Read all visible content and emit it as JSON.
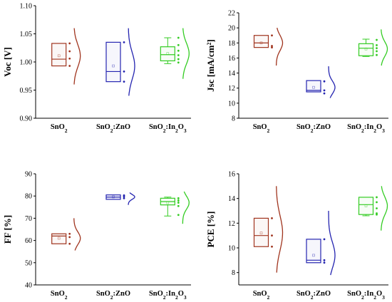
{
  "chart_data": [
    {
      "type": "box",
      "ylabel_main": "Voc",
      "ylabel_unit": "[V]",
      "ylim": [
        0.9,
        1.1
      ],
      "yticks": [
        0.9,
        0.95,
        1.0,
        1.05,
        1.1
      ],
      "ytick_labels": [
        "0.90",
        "0.95",
        "1.00",
        "1.05",
        "1.10"
      ],
      "categories": [
        {
          "base": "SnO",
          "sub": "2",
          "mid": "",
          "sub2": ""
        },
        {
          "base": "SnO",
          "sub": "2",
          "mid": ":ZnO",
          "sub2": ""
        },
        {
          "base": "SnO",
          "sub": "2",
          "mid": ":In",
          "sub2": "2",
          "tail": "O",
          "sub3": "3"
        }
      ],
      "colors": [
        "#a0341e",
        "#2424b0",
        "#33cc22"
      ],
      "boxes": [
        {
          "q1": 0.993,
          "median": 1.005,
          "q3": 1.033,
          "whisker_low": 0.993,
          "whisker_high": 1.033,
          "mean": 1.011,
          "points": [
            1.033,
            1.019,
            1.006,
            0.993
          ],
          "curve": [
            0.96,
            1.06
          ]
        },
        {
          "q1": 0.965,
          "median": 0.983,
          "q3": 1.035,
          "whisker_low": 0.965,
          "whisker_high": 1.035,
          "mean": 0.993,
          "points": [
            1.035,
            0.983,
            0.965
          ],
          "curve": [
            0.94,
            1.06
          ]
        },
        {
          "q1": 1.002,
          "median": 1.013,
          "q3": 1.027,
          "whisker_low": 0.997,
          "whisker_high": 1.043,
          "mean": 1.015,
          "points": [
            1.043,
            1.03,
            1.02,
            1.012,
            1.005,
            0.999
          ],
          "curve": [
            0.97,
            1.06
          ]
        }
      ]
    },
    {
      "type": "box",
      "ylabel_main": "Jsc",
      "ylabel_unit": "[mA/cm",
      "ylabel_sup": "2",
      "ylabel_end": "]",
      "ylim": [
        8,
        22
      ],
      "yticks": [
        8,
        10,
        12,
        14,
        16,
        18,
        20,
        22
      ],
      "ytick_labels": [
        "8",
        "10",
        "12",
        "14",
        "16",
        "18",
        "20",
        "22"
      ],
      "categories": [
        {
          "base": "SnO",
          "sub": "2",
          "mid": "",
          "sub2": ""
        },
        {
          "base": "SnO",
          "sub": "2",
          "mid": ":ZnO",
          "sub2": ""
        },
        {
          "base": "SnO",
          "sub": "2",
          "mid": ":In",
          "sub2": "2",
          "tail": "O",
          "sub3": "3"
        }
      ],
      "colors": [
        "#a0341e",
        "#2424b0",
        "#33cc22"
      ],
      "boxes": [
        {
          "q1": 17.4,
          "median": 18.0,
          "q3": 19.0,
          "whisker_low": 17.4,
          "whisker_high": 19.0,
          "mean": 18.0,
          "points": [
            19.0,
            17.6,
            17.4
          ],
          "curve": [
            15.0,
            20.0
          ]
        },
        {
          "q1": 11.5,
          "median": 11.7,
          "q3": 13.0,
          "whisker_low": 11.5,
          "whisker_high": 13.0,
          "mean": 12.1,
          "points": [
            12.9,
            11.7,
            11.3
          ],
          "curve": [
            10.7,
            14.9
          ]
        },
        {
          "q1": 16.3,
          "median": 17.3,
          "q3": 17.9,
          "whisker_low": 16.2,
          "whisker_high": 18.5,
          "mean": 17.2,
          "points": [
            18.4,
            17.7,
            17.3,
            16.9,
            16.4
          ],
          "curve": [
            15.0,
            19.8
          ]
        }
      ]
    },
    {
      "type": "box",
      "ylabel_main": "FF",
      "ylabel_unit": "[%]",
      "ylim": [
        40,
        90
      ],
      "yticks": [
        40,
        50,
        60,
        70,
        80,
        90
      ],
      "ytick_labels": [
        "40",
        "50",
        "60",
        "70",
        "80",
        "90"
      ],
      "categories": [
        {
          "base": "SnO",
          "sub": "2",
          "mid": "",
          "sub2": ""
        },
        {
          "base": "SnO",
          "sub": "2",
          "mid": ":ZnO",
          "sub2": ""
        },
        {
          "base": "SnO",
          "sub": "2",
          "mid": ":In",
          "sub2": "2",
          "tail": "O",
          "sub3": "3"
        }
      ],
      "colors": [
        "#a0341e",
        "#2424b0",
        "#33cc22"
      ],
      "boxes": [
        {
          "q1": 58.5,
          "median": 62.0,
          "q3": 63.0,
          "whisker_low": 58.5,
          "whisker_high": 63.0,
          "mean": 61.0,
          "points": [
            63.0,
            61.5,
            58.5
          ],
          "curve": [
            55.5,
            70.0
          ]
        },
        {
          "q1": 78.5,
          "median": 79.5,
          "q3": 80.5,
          "whisker_low": 78.5,
          "whisker_high": 80.5,
          "mean": 79.6,
          "points": [
            80.3,
            79.8,
            79.0
          ],
          "curve": [
            76.0,
            81.5
          ]
        },
        {
          "q1": 76.0,
          "median": 77.5,
          "q3": 79.0,
          "whisker_low": 71.0,
          "whisker_high": 79.5,
          "mean": 77.0,
          "points": [
            79.0,
            78.0,
            77.0,
            75.5,
            71.5
          ],
          "curve": [
            67.5,
            82.0
          ]
        }
      ]
    },
    {
      "type": "box",
      "ylabel_main": "PCE",
      "ylabel_unit": "[%]",
      "ylim": [
        7,
        16
      ],
      "yticks": [
        8,
        10,
        12,
        14,
        16
      ],
      "ytick_labels": [
        "8",
        "10",
        "12",
        "14",
        "16"
      ],
      "categories": [
        {
          "base": "SnO",
          "sub": "2",
          "mid": "",
          "sub2": ""
        },
        {
          "base": "SnO",
          "sub": "2",
          "mid": ":ZnO",
          "sub2": ""
        },
        {
          "base": "SnO",
          "sub": "2",
          "mid": ":In",
          "sub2": "2",
          "tail": "O",
          "sub3": "3"
        }
      ],
      "colors": [
        "#a0341e",
        "#2424b0",
        "#33cc22"
      ],
      "boxes": [
        {
          "q1": 10.1,
          "median": 11.0,
          "q3": 12.4,
          "whisker_low": 10.1,
          "whisker_high": 12.4,
          "mean": 11.2,
          "points": [
            12.4,
            11.0,
            10.1
          ],
          "curve": [
            8.0,
            15.0
          ]
        },
        {
          "q1": 8.8,
          "median": 9.0,
          "q3": 10.7,
          "whisker_low": 8.8,
          "whisker_high": 10.7,
          "mean": 9.4,
          "points": [
            10.7,
            9.0,
            8.8
          ],
          "curve": [
            7.8,
            13.0
          ]
        },
        {
          "q1": 12.7,
          "median": 13.5,
          "q3": 14.1,
          "whisker_low": 12.6,
          "whisker_high": 14.1,
          "mean": 13.4,
          "points": [
            14.1,
            13.7,
            13.2,
            12.8,
            12.7
          ],
          "curve": [
            11.4,
            15.0
          ]
        }
      ]
    }
  ]
}
